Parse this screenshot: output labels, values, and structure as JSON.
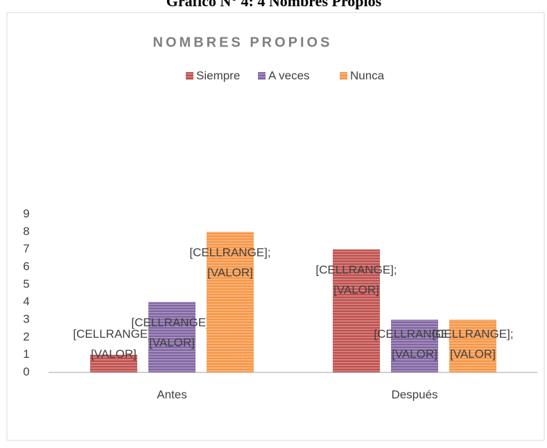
{
  "caption": "Gráfico N° 4: 4 Nombres Propios",
  "chart_data": {
    "type": "bar",
    "title": "NOMBRES PROPIOS",
    "categories": [
      "Antes",
      "Después"
    ],
    "series": [
      {
        "name": "Siempre",
        "color": "#c0504d",
        "values": [
          1,
          7
        ],
        "data_labels": [
          [
            "[CELLRANGE];",
            "[VALOR]"
          ],
          [
            "[CELLRANGE];",
            "[VALOR]"
          ]
        ]
      },
      {
        "name": "A veces",
        "color": "#8064a2",
        "values": [
          4,
          3
        ],
        "data_labels": [
          [
            "[CELLRANGE];",
            "[VALOR]"
          ],
          [
            "[CELLRANGE];",
            "[VALOR]"
          ]
        ]
      },
      {
        "name": "Nunca",
        "color": "#f79646",
        "values": [
          8,
          3
        ],
        "data_labels": [
          [
            "[CELLRANGE];",
            "[VALOR]"
          ],
          [
            "[CELLRANGE];",
            "[VALOR]"
          ]
        ]
      }
    ],
    "ylim": [
      0,
      9
    ],
    "yticks": [
      0,
      1,
      2,
      3,
      4,
      5,
      6,
      7,
      8,
      9
    ],
    "grid": false,
    "legend": "top"
  }
}
